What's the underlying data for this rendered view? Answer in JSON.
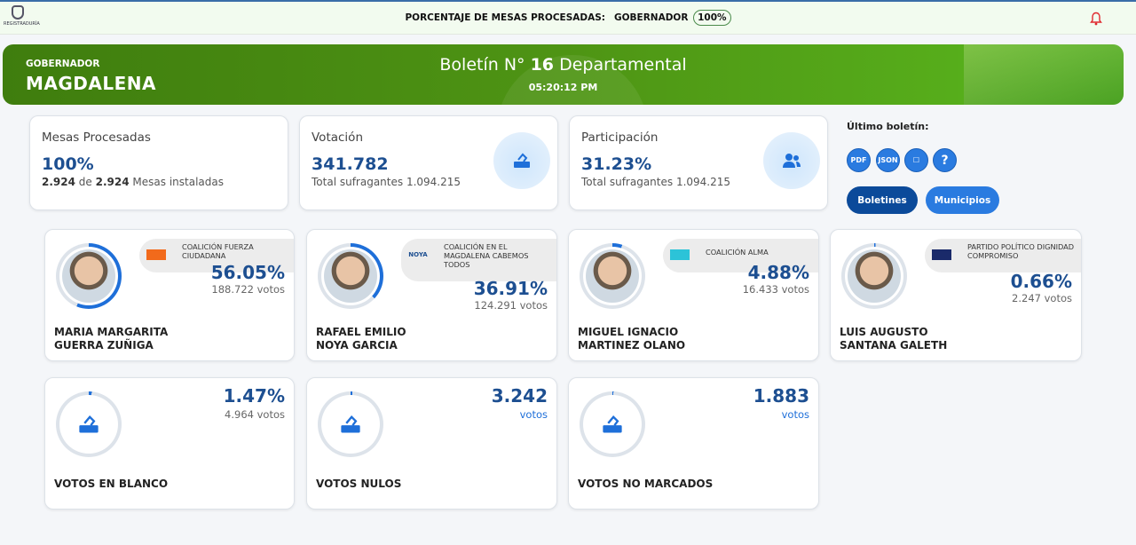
{
  "topbar": {
    "logo_text": "REGISTRADURÍA",
    "proc_label": "PORCENTAJE DE MESAS PROCESADAS:",
    "office": "GOBERNADOR",
    "proc_value": "100%"
  },
  "banner": {
    "office": "GOBERNADOR",
    "department": "MAGDALENA",
    "title_pre": "Boletín N°",
    "number": "16",
    "title_post": "Departamental",
    "time": "05:20:12 PM"
  },
  "stats": [
    {
      "label": "Mesas Procesadas",
      "value": "100%",
      "sub_a": "2.924",
      "sub_mid": "de",
      "sub_b": "2.924",
      "sub_post": "Mesas instaladas"
    },
    {
      "label": "Votación",
      "value": "341.782",
      "sub": "Total sufragantes 1.094.215",
      "icon": "ballot-box-icon"
    },
    {
      "label": "Participación",
      "value": "31.23%",
      "sub": "Total sufragantes 1.094.215",
      "icon": "people-icon"
    }
  ],
  "side": {
    "title": "Último boletín:",
    "downloads": [
      {
        "name": "pdf",
        "text": "PDF"
      },
      {
        "name": "json",
        "text": "JSON"
      },
      {
        "name": "ballot",
        "text": "☐"
      },
      {
        "name": "help",
        "text": "?"
      }
    ],
    "btn_boletines": "Boletines",
    "btn_municipios": "Municipios",
    "colors": {
      "primary": "#0b4a9a",
      "secondary": "#2a7be0"
    }
  },
  "candidates": [
    {
      "first": "MARIA MARGARITA",
      "last": "GUERRA ZUÑIGA",
      "party": "COALICIÓN FUERZA CIUDADANA",
      "party_logo": "FC",
      "logo_color": "#f26a1b",
      "pct": "56.05%",
      "pct_value": 56.05,
      "votes": "188.722 votos"
    },
    {
      "first": "RAFAEL EMILIO",
      "last": "NOYA GARCIA",
      "party": "COALICIÓN EN EL MAGDALENA CABEMOS TODOS",
      "party_logo": "NOYA",
      "logo_color": "#1d4f91",
      "pct": "36.91%",
      "pct_value": 36.91,
      "votes": "124.291 votos"
    },
    {
      "first": "MIGUEL IGNACIO",
      "last": "MARTINEZ OLANO",
      "party": "COALICIÓN ALMA",
      "party_logo": "alma",
      "logo_color": "#2cc3d8",
      "pct": "4.88%",
      "pct_value": 4.88,
      "votes": "16.433 votos"
    },
    {
      "first": "LUIS AUGUSTO",
      "last": "SANTANA GALETH",
      "party": "PARTIDO POLÍTICO DIGNIDAD COMPROMISO",
      "party_logo": "DIGNIDAD",
      "logo_color": "#1a2a6a",
      "pct": "0.66%",
      "pct_value": 0.66,
      "votes": "2.247 votos"
    }
  ],
  "others": [
    {
      "label": "VOTOS EN BLANCO",
      "value": "1.47%",
      "sub": "4.964 votos",
      "pct_value": 1.47
    },
    {
      "label": "VOTOS NULOS",
      "value": "3.242",
      "sub": "votos",
      "pct_value": 0.95
    },
    {
      "label": "VOTOS NO MARCADOS",
      "value": "1.883",
      "sub": "votos",
      "pct_value": 0.55
    }
  ]
}
